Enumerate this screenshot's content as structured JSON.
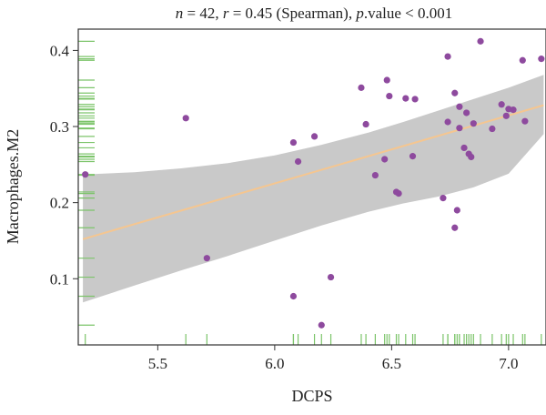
{
  "chart_data": {
    "type": "scatter",
    "title_parts": {
      "n_symbol": "n",
      "n_text": " = 42, ",
      "r_symbol": "r",
      "r_text": " = 0.45 (Spearman), ",
      "p_symbol": "p",
      "p_text": ".value < 0.001"
    },
    "xlabel": "DCPS",
    "ylabel": "Macrophages.M2",
    "xlim": [
      5.16,
      7.16
    ],
    "ylim": [
      0.013,
      0.428
    ],
    "xticks": [
      5.5,
      6.0,
      6.5,
      7.0
    ],
    "yticks": [
      0.1,
      0.2,
      0.3,
      0.4
    ],
    "xtick_labels": [
      "5.5",
      "6.0",
      "6.5",
      "7.0"
    ],
    "ytick_labels": [
      "0.1",
      "0.2",
      "0.3",
      "0.4"
    ],
    "grid": false,
    "legend": "none",
    "colors": {
      "points": "#8e4a9e",
      "fit_line": "#f5c690",
      "ci_band": "#c9c9c9",
      "rug": "#7cc46a",
      "axis": "#333333"
    },
    "fit": {
      "x": [
        5.18,
        7.15
      ],
      "y": [
        0.152,
        0.328
      ]
    },
    "ci_band": {
      "x": [
        5.18,
        5.4,
        5.6,
        5.8,
        6.0,
        6.2,
        6.4,
        6.55,
        6.7,
        6.85,
        7.0,
        7.15
      ],
      "upper": [
        0.237,
        0.24,
        0.245,
        0.252,
        0.262,
        0.276,
        0.292,
        0.306,
        0.321,
        0.336,
        0.351,
        0.368
      ],
      "lower": [
        0.069,
        0.091,
        0.111,
        0.13,
        0.15,
        0.17,
        0.188,
        0.199,
        0.208,
        0.22,
        0.238,
        0.29
      ]
    },
    "points": {
      "x": [
        5.19,
        5.62,
        5.71,
        6.08,
        6.08,
        6.1,
        6.17,
        6.2,
        6.24,
        6.37,
        6.39,
        6.43,
        6.47,
        6.48,
        6.49,
        6.52,
        6.53,
        6.56,
        6.59,
        6.6,
        6.72,
        6.74,
        6.74,
        6.77,
        6.77,
        6.78,
        6.79,
        6.79,
        6.81,
        6.82,
        6.83,
        6.84,
        6.85,
        6.88,
        6.93,
        6.97,
        6.99,
        7.0,
        7.02,
        7.06,
        7.07,
        7.14
      ],
      "y": [
        0.237,
        0.311,
        0.127,
        0.279,
        0.077,
        0.254,
        0.287,
        0.039,
        0.102,
        0.351,
        0.303,
        0.236,
        0.257,
        0.361,
        0.34,
        0.214,
        0.212,
        0.337,
        0.261,
        0.336,
        0.206,
        0.392,
        0.306,
        0.167,
        0.344,
        0.19,
        0.326,
        0.298,
        0.272,
        0.318,
        0.264,
        0.26,
        0.304,
        0.412,
        0.297,
        0.329,
        0.314,
        0.323,
        0.322,
        0.387,
        0.307,
        0.389
      ]
    },
    "rug_x": [
      5.19,
      5.62,
      5.71,
      6.08,
      6.08,
      6.1,
      6.17,
      6.2,
      6.24,
      6.37,
      6.39,
      6.43,
      6.47,
      6.48,
      6.49,
      6.52,
      6.53,
      6.56,
      6.59,
      6.6,
      6.72,
      6.74,
      6.74,
      6.77,
      6.77,
      6.78,
      6.79,
      6.79,
      6.81,
      6.82,
      6.83,
      6.84,
      6.85,
      6.88,
      6.93,
      6.97,
      6.99,
      7.0,
      7.02,
      7.06,
      7.07,
      7.14
    ],
    "rug_y": [
      0.039,
      0.077,
      0.102,
      0.127,
      0.167,
      0.19,
      0.206,
      0.212,
      0.214,
      0.236,
      0.237,
      0.254,
      0.257,
      0.26,
      0.261,
      0.264,
      0.272,
      0.279,
      0.287,
      0.297,
      0.298,
      0.303,
      0.304,
      0.306,
      0.307,
      0.311,
      0.314,
      0.318,
      0.322,
      0.323,
      0.326,
      0.329,
      0.336,
      0.337,
      0.34,
      0.344,
      0.351,
      0.361,
      0.387,
      0.389,
      0.392,
      0.412
    ]
  }
}
